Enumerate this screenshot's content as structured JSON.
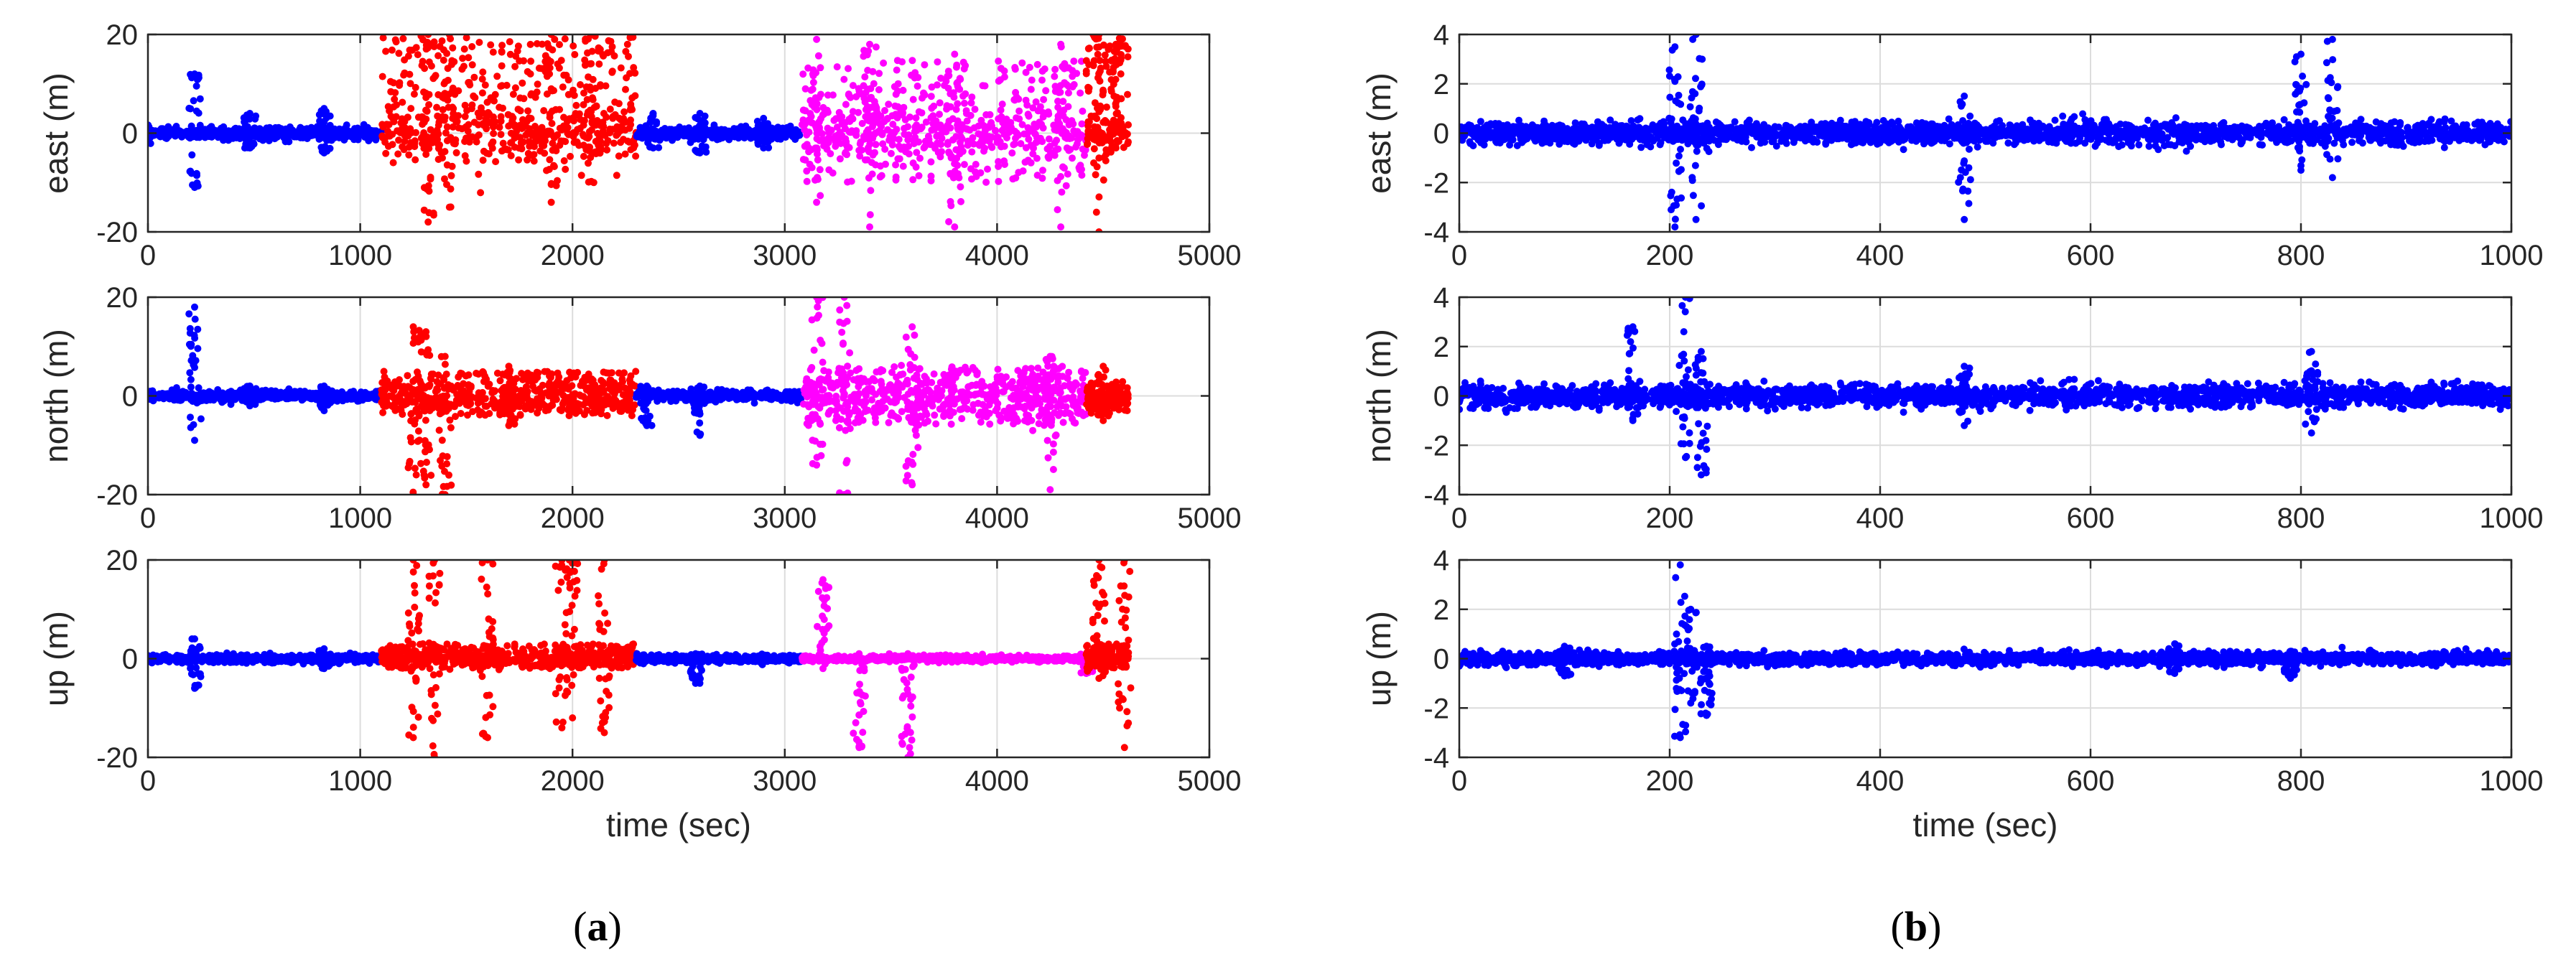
{
  "colors": {
    "blue": "#0000ff",
    "red": "#ff0000",
    "magenta": "#ff00ff",
    "axis": "#262626",
    "grid": "#dcdcdc"
  },
  "panels": [
    {
      "id": "a",
      "caption_open": "(",
      "caption_letter": "a",
      "caption_close": ")",
      "xlabel": "time (sec)"
    },
    {
      "id": "b",
      "caption_open": "(",
      "caption_letter": "b",
      "caption_close": ")",
      "xlabel": "time (sec)"
    }
  ],
  "chart_data": [
    {
      "type": "scatter",
      "panel": "a",
      "component": "east",
      "ylabel": "east (m)",
      "xlim": [
        0,
        5000
      ],
      "ylim": [
        -20,
        20
      ],
      "xticks": [
        0,
        1000,
        2000,
        3000,
        4000,
        5000
      ],
      "yticks": [
        -20,
        0,
        20
      ],
      "grid": true,
      "segments": [
        {
          "color": "blue",
          "x_range": [
            0,
            1100
          ],
          "noise": 0.6,
          "spikes": [
            [
              220,
              12,
              -11
            ],
            [
              480,
              4,
              -3
            ],
            [
              830,
              5,
              -4
            ]
          ]
        },
        {
          "color": "red",
          "x_range": [
            1100,
            2300
          ],
          "noise": 3,
          "band": [
            -5,
            20
          ],
          "spikes": [
            [
              1320,
              20,
              -18
            ],
            [
              1420,
              20,
              -15
            ],
            [
              1900,
              20,
              -14
            ],
            [
              2100,
              20,
              -10
            ]
          ]
        },
        {
          "color": "blue",
          "x_range": [
            2300,
            3080
          ],
          "noise": 0.6,
          "spikes": [
            [
              2380,
              4,
              -3
            ],
            [
              2600,
              4,
              -4
            ],
            [
              2900,
              3,
              -3
            ]
          ]
        },
        {
          "color": "magenta",
          "x_range": [
            3080,
            4420
          ],
          "noise": 3,
          "band": [
            -10,
            15
          ],
          "spikes": [
            [
              3150,
              19,
              -14
            ],
            [
              3400,
              18,
              -19
            ],
            [
              3800,
              16,
              -19
            ],
            [
              4300,
              18,
              -19
            ]
          ]
        },
        {
          "color": "red",
          "x_range": [
            4420,
            4620
          ],
          "noise": 2,
          "band": [
            -2,
            20
          ],
          "spikes": [
            [
              4480,
              20,
              -20
            ],
            [
              4560,
              18,
              -3
            ]
          ]
        }
      ]
    },
    {
      "type": "scatter",
      "panel": "a",
      "component": "north",
      "ylabel": "north (m)",
      "xlim": [
        0,
        5000
      ],
      "ylim": [
        -20,
        20
      ],
      "xticks": [
        0,
        1000,
        2000,
        3000,
        4000,
        5000
      ],
      "yticks": [
        -20,
        0,
        20
      ],
      "grid": true,
      "segments": [
        {
          "color": "blue",
          "x_range": [
            0,
            1100
          ],
          "noise": 0.5,
          "spikes": [
            [
              220,
              18,
              -9
            ],
            [
              480,
              2,
              -2
            ],
            [
              830,
              2,
              -3
            ]
          ]
        },
        {
          "color": "red",
          "x_range": [
            1100,
            2300
          ],
          "noise": 1.8,
          "band": [
            -4,
            5
          ],
          "spikes": [
            [
              1250,
              14,
              -20
            ],
            [
              1310,
              13,
              -18
            ],
            [
              1400,
              8,
              -20
            ],
            [
              1700,
              6,
              -6
            ]
          ]
        },
        {
          "color": "blue",
          "x_range": [
            2300,
            3080
          ],
          "noise": 0.5,
          "spikes": [
            [
              2350,
              2,
              -6
            ],
            [
              2600,
              2,
              -8
            ]
          ]
        },
        {
          "color": "magenta",
          "x_range": [
            3080,
            4420
          ],
          "noise": 2.5,
          "band": [
            -6,
            6
          ],
          "spikes": [
            [
              3150,
              20,
              -14
            ],
            [
              3280,
              20,
              -20
            ],
            [
              3600,
              14,
              -18
            ],
            [
              4250,
              8,
              -19
            ]
          ]
        },
        {
          "color": "red",
          "x_range": [
            4420,
            4620
          ],
          "noise": 1.2,
          "band": [
            -3,
            3
          ],
          "spikes": [
            [
              4500,
              6,
              -5
            ]
          ]
        }
      ]
    },
    {
      "type": "scatter",
      "panel": "a",
      "component": "up",
      "ylabel": "up (m)",
      "xlim": [
        0,
        5000
      ],
      "ylim": [
        -20,
        20
      ],
      "xticks": [
        0,
        1000,
        2000,
        3000,
        4000,
        5000
      ],
      "yticks": [
        -20,
        0,
        20
      ],
      "xlabel": "time (sec)",
      "grid": true,
      "segments": [
        {
          "color": "blue",
          "x_range": [
            0,
            1100
          ],
          "noise": 0.4,
          "spikes": [
            [
              220,
              4,
              -6
            ],
            [
              830,
              2,
              -2
            ]
          ]
        },
        {
          "color": "red",
          "x_range": [
            1100,
            2300
          ],
          "noise": 0.8,
          "band": [
            -2,
            3
          ],
          "spikes": [
            [
              1250,
              20,
              -16
            ],
            [
              1350,
              20,
              -20
            ],
            [
              1600,
              20,
              -16
            ],
            [
              1950,
              20,
              -14
            ],
            [
              2000,
              20,
              -12
            ],
            [
              2150,
              20,
              -15
            ]
          ]
        },
        {
          "color": "blue",
          "x_range": [
            2300,
            3080
          ],
          "noise": 0.4,
          "spikes": [
            [
              2580,
              1,
              -5
            ]
          ]
        },
        {
          "color": "magenta",
          "x_range": [
            3080,
            4420
          ],
          "noise": 0.3,
          "spikes": [
            [
              3180,
              16,
              -2
            ],
            [
              3350,
              1,
              -18
            ],
            [
              3580,
              1,
              -20
            ],
            [
              4420,
              1,
              -3
            ]
          ]
        },
        {
          "color": "red",
          "x_range": [
            4420,
            4620
          ],
          "noise": 1,
          "band": [
            -2,
            3
          ],
          "spikes": [
            [
              4480,
              20,
              -4
            ],
            [
              4600,
              20,
              -18
            ]
          ]
        }
      ]
    },
    {
      "type": "scatter",
      "panel": "b",
      "component": "east",
      "ylabel": "east (m)",
      "xlim": [
        0,
        1000
      ],
      "ylim": [
        -4,
        4
      ],
      "xticks": [
        0,
        200,
        400,
        600,
        800,
        1000
      ],
      "yticks": [
        -4,
        -2,
        0,
        2,
        4
      ],
      "grid": true,
      "segments": [
        {
          "color": "blue",
          "x_range": [
            0,
            1000
          ],
          "noise": 0.22,
          "spikes": [
            [
              205,
              3.5,
              -3.8
            ],
            [
              225,
              4,
              -3.5
            ],
            [
              480,
              1.5,
              -3.5
            ],
            [
              800,
              3.2,
              -1.5
            ],
            [
              830,
              3.8,
              -1.8
            ]
          ]
        }
      ]
    },
    {
      "type": "scatter",
      "panel": "b",
      "component": "north",
      "ylabel": "north (m)",
      "xlim": [
        0,
        1000
      ],
      "ylim": [
        -4,
        4
      ],
      "xticks": [
        0,
        200,
        400,
        600,
        800,
        1000
      ],
      "yticks": [
        -4,
        -2,
        0,
        2,
        4
      ],
      "grid": true,
      "segments": [
        {
          "color": "blue",
          "x_range": [
            0,
            1000
          ],
          "noise": 0.22,
          "spikes": [
            [
              165,
              2.8,
              -1
            ],
            [
              215,
              4,
              -2.5
            ],
            [
              230,
              1.8,
              -3.2
            ],
            [
              480,
              1.2,
              -1.2
            ],
            [
              810,
              1.8,
              -1.5
            ]
          ]
        }
      ]
    },
    {
      "type": "scatter",
      "panel": "b",
      "component": "up",
      "ylabel": "up (m)",
      "xlim": [
        0,
        1000
      ],
      "ylim": [
        -4,
        4
      ],
      "xticks": [
        0,
        200,
        400,
        600,
        800,
        1000
      ],
      "yticks": [
        -4,
        -2,
        0,
        2,
        4
      ],
      "xlabel": "time (sec)",
      "grid": true,
      "segments": [
        {
          "color": "blue",
          "x_range": [
            0,
            1000
          ],
          "noise": 0.12,
          "spikes": [
            [
              210,
              3.8,
              -3.2
            ],
            [
              220,
              2,
              -1.8
            ],
            [
              235,
              0.5,
              -2.3
            ],
            [
              100,
              0.5,
              -0.7
            ],
            [
              790,
              0.3,
              -0.8
            ],
            [
              680,
              0.6,
              -0.6
            ]
          ]
        }
      ]
    }
  ]
}
